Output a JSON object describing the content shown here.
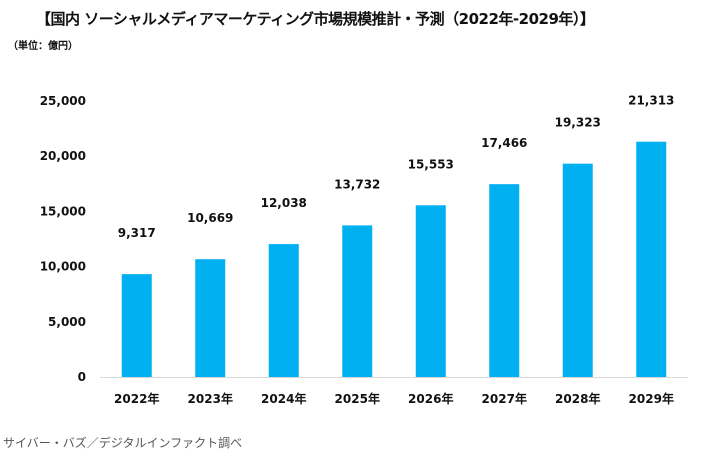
{
  "chart_data": {
    "type": "bar",
    "title": "【国内 ソーシャルメディアマーケティング市場規模推計・予測（2022年-2029年）】",
    "unit_label": "（単位：億円）",
    "categories": [
      "2022年",
      "2023年",
      "2024年",
      "2025年",
      "2026年",
      "2027年",
      "2028年",
      "2029年"
    ],
    "values": [
      9317,
      10669,
      12038,
      13732,
      15553,
      17466,
      19323,
      21313
    ],
    "value_labels": [
      "9,317",
      "10,669",
      "12,038",
      "13,732",
      "15,553",
      "17,466",
      "19,323",
      "21,313"
    ],
    "yticks": [
      0,
      5000,
      10000,
      15000,
      20000,
      25000
    ],
    "ytick_labels": [
      "0",
      "5,000",
      "10,000",
      "15,000",
      "20,000",
      "25,000"
    ],
    "ylim": [
      0,
      25000
    ],
    "xlabel": "",
    "ylabel": "",
    "grid": false,
    "bar_color": "#00b0f0",
    "source": "サイバー・バズ／デジタルインファクト調べ"
  }
}
